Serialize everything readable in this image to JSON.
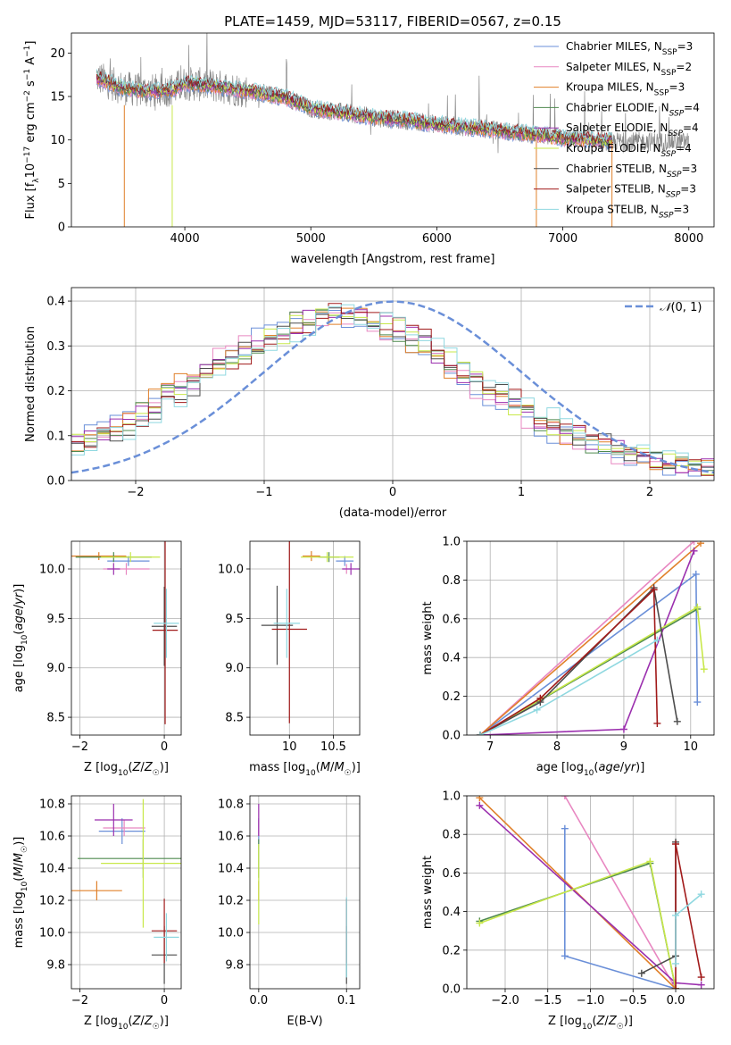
{
  "figure": {
    "title": "PLATE=1459, MJD=53117, FIBERID=0567, z=0.15"
  },
  "colors": {
    "chabrier_miles": "#6a8fd8",
    "salpeter_miles": "#e887c1",
    "kroupa_miles": "#e0802a",
    "chabrier_elodie": "#4f8a4f",
    "salpeter_elodie": "#9b2fae",
    "kroupa_elodie": "#c8e84a",
    "chabrier_stelib": "#4d4d4d",
    "salpeter_stelib": "#a11a1a",
    "kroupa_stelib": "#8fd8e0",
    "data_spectrum": "#888888",
    "normal": "#6a8fd8"
  },
  "chart_data": [
    {
      "type": "line",
      "panel": "spectrum",
      "xlabel": "wavelength [Angstrom, rest frame]",
      "ylabel": "Flux [f_λ 10^-17 erg cm^-2 s^-1 A^-1]",
      "xlim": [
        3100,
        8200
      ],
      "ylim": [
        0,
        22.3
      ],
      "xticks": [
        4000,
        5000,
        6000,
        7000,
        8000
      ],
      "yticks": [
        0,
        5,
        10,
        15,
        20
      ],
      "legend_position": "top-right",
      "legend": [
        {
          "key": "chabrier_miles",
          "base": "Chabrier MILES, N",
          "sub": "SSP",
          "tail": "=3"
        },
        {
          "key": "salpeter_miles",
          "base": "Salpeter MILES, N",
          "sub": "SSP",
          "tail": "=2"
        },
        {
          "key": "kroupa_miles",
          "base": "Kroupa MILES, N",
          "sub": "SSP",
          "tail": "=3"
        },
        {
          "key": "chabrier_elodie",
          "base": "Chabrier ELODIE, N",
          "sub": "SSP",
          "tail": "=4"
        },
        {
          "key": "salpeter_elodie",
          "base": "Salpeter ELODIE, N",
          "sub": "SSP",
          "tail": "=4"
        },
        {
          "key": "kroupa_elodie",
          "base": "Kroupa ELODIE, N",
          "sub": "SSP",
          "tail": "=4"
        },
        {
          "key": "chabrier_stelib",
          "base": "Chabrier STELIB, N",
          "sub": "SSP",
          "tail": "=3"
        },
        {
          "key": "salpeter_stelib",
          "base": "Salpeter STELIB, N",
          "sub": "SSP",
          "tail": "=3"
        },
        {
          "key": "kroupa_stelib",
          "base": "Kroupa STELIB, N",
          "sub": "SSP",
          "tail": "=3"
        }
      ],
      "continuum": [
        [
          3300,
          17.2
        ],
        [
          3500,
          16.0
        ],
        [
          3700,
          15.6
        ],
        [
          3900,
          15.8
        ],
        [
          4000,
          16.5
        ],
        [
          4200,
          16.3
        ],
        [
          4500,
          15.6
        ],
        [
          4800,
          14.9
        ],
        [
          5000,
          13.6
        ],
        [
          5200,
          13.3
        ],
        [
          5500,
          12.6
        ],
        [
          5800,
          12.2
        ],
        [
          6000,
          11.8
        ],
        [
          6300,
          11.4
        ],
        [
          6600,
          10.9
        ],
        [
          6800,
          10.6
        ],
        [
          7000,
          10.2
        ],
        [
          7200,
          10.0
        ],
        [
          7400,
          9.8
        ]
      ],
      "spectrum_range": [
        3300,
        8000
      ]
    },
    {
      "type": "step",
      "panel": "residual_histogram",
      "xlabel": "(data-model)/error",
      "ylabel": "Normed distribution",
      "xlim": [
        -2.5,
        2.5
      ],
      "ylim": [
        0,
        0.43
      ],
      "xticks": [
        -2,
        -1,
        0,
        1,
        2
      ],
      "yticks": [
        0.0,
        0.1,
        0.2,
        0.3,
        0.4
      ],
      "legend_position": "top-right",
      "normal_label": "N(0,1)",
      "bin_width": 0.1,
      "envelope": [
        [
          -2.5,
          0.08
        ],
        [
          -2.0,
          0.13
        ],
        [
          -1.8,
          0.18
        ],
        [
          -1.5,
          0.23
        ],
        [
          -1.3,
          0.27
        ],
        [
          -1.0,
          0.31
        ],
        [
          -0.8,
          0.34
        ],
        [
          -0.6,
          0.37
        ],
        [
          -0.4,
          0.37
        ],
        [
          -0.2,
          0.36
        ],
        [
          0.0,
          0.34
        ],
        [
          0.2,
          0.31
        ],
        [
          0.4,
          0.27
        ],
        [
          0.6,
          0.23
        ],
        [
          0.8,
          0.19
        ],
        [
          1.0,
          0.16
        ],
        [
          1.2,
          0.13
        ],
        [
          1.4,
          0.1
        ],
        [
          1.6,
          0.08
        ],
        [
          1.8,
          0.06
        ],
        [
          2.0,
          0.045
        ],
        [
          2.2,
          0.035
        ],
        [
          2.5,
          0.025
        ]
      ]
    },
    {
      "type": "scatter",
      "panel": "Z_vs_age",
      "xlabel": "Z [log10(Z/Z☉)]",
      "ylabel": "age [log10(age/yr)]",
      "xlim": [
        -2.2,
        0.4
      ],
      "ylim": [
        8.32,
        10.28
      ],
      "xticks": [
        -2,
        0
      ],
      "yticks": [
        8.5,
        9.0,
        9.5,
        10.0
      ],
      "points": [
        {
          "key": "chabrier_miles",
          "x": -0.85,
          "y": 10.08,
          "xerr": 0.5,
          "yerr": 0.05
        },
        {
          "key": "salpeter_miles",
          "x": -0.9,
          "y": 10.0,
          "xerr": 0.55,
          "yerr": 0.06
        },
        {
          "key": "kroupa_miles",
          "x": -1.55,
          "y": 10.13,
          "xerr": 0.65,
          "yerr": 0.04
        },
        {
          "key": "chabrier_elodie",
          "x": -1.2,
          "y": 10.12,
          "xerr": 0.9,
          "yerr": 0.05
        },
        {
          "key": "salpeter_elodie",
          "x": -1.2,
          "y": 10.0,
          "xerr": 0.15,
          "yerr": 0.06
        },
        {
          "key": "kroupa_elodie",
          "x": -0.8,
          "y": 10.12,
          "xerr": 0.7,
          "yerr": 0.05
        },
        {
          "key": "chabrier_stelib",
          "x": 0.0,
          "y": 9.42,
          "xerr": 0.3,
          "yerr": 0.4
        },
        {
          "key": "salpeter_stelib",
          "x": 0.02,
          "y": 9.38,
          "xerr": 0.3,
          "yerr": 0.95
        },
        {
          "key": "kroupa_stelib",
          "x": 0.05,
          "y": 9.45,
          "xerr": 0.3,
          "yerr": 0.35
        }
      ]
    },
    {
      "type": "scatter",
      "panel": "mass_vs_age",
      "xlabel": "mass [log10(M/M☉)]",
      "ylabel": "",
      "xlim": [
        9.55,
        10.8
      ],
      "ylim": [
        8.32,
        10.28
      ],
      "xticks": [
        10.0,
        10.5
      ],
      "yticks": [
        8.5,
        9.0,
        9.5,
        10.0
      ],
      "points": [
        {
          "key": "chabrier_miles",
          "x": 10.63,
          "y": 10.08,
          "xerr": 0.1,
          "yerr": 0.05
        },
        {
          "key": "salpeter_miles",
          "x": 10.65,
          "y": 10.0,
          "xerr": 0.05,
          "yerr": 0.05
        },
        {
          "key": "kroupa_miles",
          "x": 10.25,
          "y": 10.13,
          "xerr": 0.1,
          "yerr": 0.05
        },
        {
          "key": "chabrier_elodie",
          "x": 10.45,
          "y": 10.12,
          "xerr": 0.12,
          "yerr": 0.05
        },
        {
          "key": "salpeter_elodie",
          "x": 10.7,
          "y": 10.0,
          "xerr": 0.1,
          "yerr": 0.06
        },
        {
          "key": "kroupa_elodie",
          "x": 10.43,
          "y": 10.12,
          "xerr": 0.3,
          "yerr": 0.05
        },
        {
          "key": "chabrier_stelib",
          "x": 9.86,
          "y": 9.43,
          "xerr": 0.18,
          "yerr": 0.4
        },
        {
          "key": "salpeter_stelib",
          "x": 10.0,
          "y": 9.39,
          "xerr": 0.2,
          "yerr": 0.95
        },
        {
          "key": "kroupa_stelib",
          "x": 9.97,
          "y": 9.45,
          "xerr": 0.15,
          "yerr": 0.35
        }
      ]
    },
    {
      "type": "line",
      "panel": "age_vs_massweight",
      "xlabel": "age [log10(age/yr)]",
      "ylabel": "mass weight",
      "xlim": [
        6.65,
        10.35
      ],
      "ylim": [
        0,
        1.0
      ],
      "xticks": [
        7,
        8,
        9,
        10
      ],
      "yticks": [
        0.0,
        0.2,
        0.4,
        0.6,
        0.8,
        1.0
      ],
      "series": [
        {
          "key": "chabrier_miles",
          "x": [
            6.85,
            10.08,
            10.1
          ],
          "y": [
            0.0,
            0.83,
            0.17
          ]
        },
        {
          "key": "salpeter_miles",
          "x": [
            6.85,
            10.05
          ],
          "y": [
            0.0,
            1.0
          ]
        },
        {
          "key": "kroupa_miles",
          "x": [
            6.85,
            10.15
          ],
          "y": [
            0.0,
            0.99
          ]
        },
        {
          "key": "chabrier_elodie",
          "x": [
            6.85,
            7.75,
            10.1
          ],
          "y": [
            0.0,
            0.18,
            0.65
          ]
        },
        {
          "key": "salpeter_elodie",
          "x": [
            6.85,
            9.0,
            10.05
          ],
          "y": [
            0.0,
            0.03,
            0.95
          ]
        },
        {
          "key": "kroupa_elodie",
          "x": [
            6.85,
            10.1,
            10.2
          ],
          "y": [
            0.0,
            0.66,
            0.34
          ]
        },
        {
          "key": "chabrier_stelib",
          "x": [
            6.85,
            7.75,
            9.45,
            9.8
          ],
          "y": [
            0.0,
            0.17,
            0.76,
            0.07
          ]
        },
        {
          "key": "salpeter_stelib",
          "x": [
            6.85,
            7.75,
            9.45,
            9.5
          ],
          "y": [
            0.0,
            0.19,
            0.75,
            0.06
          ]
        },
        {
          "key": "kroupa_stelib",
          "x": [
            6.85,
            7.7,
            9.5
          ],
          "y": [
            0.0,
            0.13,
            0.49
          ]
        }
      ]
    },
    {
      "type": "scatter",
      "panel": "Z_vs_mass",
      "xlabel": "Z [log10(Z/Z☉)]",
      "ylabel": "mass [log10(M/M☉)]",
      "xlim": [
        -2.2,
        0.4
      ],
      "ylim": [
        9.65,
        10.85
      ],
      "xticks": [
        -2,
        0
      ],
      "yticks": [
        9.8,
        10.0,
        10.2,
        10.4,
        10.6,
        10.8
      ],
      "points": [
        {
          "key": "chabrier_miles",
          "x": -1.0,
          "y": 10.63,
          "xerr": 0.55,
          "yerr": 0.08
        },
        {
          "key": "salpeter_miles",
          "x": -0.95,
          "y": 10.65,
          "xerr": 0.5,
          "yerr": 0.05
        },
        {
          "key": "kroupa_miles",
          "x": -1.6,
          "y": 10.26,
          "xerr": 0.6,
          "yerr": 0.06
        },
        {
          "key": "chabrier_elodie",
          "x": -0.5,
          "y": 10.46,
          "xerr": 1.55,
          "yerr": 0.12
        },
        {
          "key": "salpeter_elodie",
          "x": -1.2,
          "y": 10.7,
          "xerr": 0.45,
          "yerr": 0.1
        },
        {
          "key": "kroupa_elodie",
          "x": -0.5,
          "y": 10.43,
          "xerr": 1.0,
          "yerr": 0.4
        },
        {
          "key": "chabrier_stelib",
          "x": 0.0,
          "y": 9.86,
          "xerr": 0.3,
          "yerr": 0.18
        },
        {
          "key": "salpeter_stelib",
          "x": 0.0,
          "y": 10.01,
          "xerr": 0.3,
          "yerr": 0.2
        },
        {
          "key": "kroupa_stelib",
          "x": 0.05,
          "y": 9.97,
          "xerr": 0.3,
          "yerr": 0.15
        }
      ]
    },
    {
      "type": "scatter",
      "panel": "EBV_vs_mass",
      "xlabel": "E(B-V)",
      "ylabel": "",
      "xlim": [
        -0.01,
        0.115
      ],
      "ylim": [
        9.65,
        10.85
      ],
      "xticks": [
        0.0,
        0.1
      ],
      "xtick_labels": [
        "0.0",
        "0.1"
      ],
      "yticks": [
        9.8,
        10.0,
        10.2,
        10.4,
        10.6,
        10.8
      ],
      "points": [
        {
          "key": "chabrier_miles",
          "x": 0.0,
          "y": 10.63,
          "xerr": 0.0,
          "yerr": 0.08
        },
        {
          "key": "salpeter_miles",
          "x": 0.0,
          "y": 10.65,
          "xerr": 0.0,
          "yerr": 0.05
        },
        {
          "key": "kroupa_miles",
          "x": 0.0,
          "y": 10.26,
          "xerr": 0.0,
          "yerr": 0.06
        },
        {
          "key": "chabrier_elodie",
          "x": 0.0,
          "y": 10.46,
          "xerr": 0.0,
          "yerr": 0.12
        },
        {
          "key": "salpeter_elodie",
          "x": 0.0,
          "y": 10.7,
          "xerr": 0.0,
          "yerr": 0.1
        },
        {
          "key": "kroupa_elodie",
          "x": 0.0,
          "y": 10.3,
          "xerr": 0.0,
          "yerr": 0.25
        },
        {
          "key": "chabrier_stelib",
          "x": 0.1,
          "y": 9.86,
          "xerr": 0.0,
          "yerr": 0.18
        },
        {
          "key": "salpeter_stelib",
          "x": 0.1,
          "y": 10.01,
          "xerr": 0.0,
          "yerr": 0.2
        },
        {
          "key": "kroupa_stelib",
          "x": 0.1,
          "y": 9.97,
          "xerr": 0.0,
          "yerr": 0.25
        }
      ]
    },
    {
      "type": "line",
      "panel": "Z_vs_massweight",
      "xlabel": "Z [log10(Z/Z☉)]",
      "ylabel": "mass weight",
      "xlim": [
        -2.45,
        0.45
      ],
      "ylim": [
        0,
        1.0
      ],
      "xticks": [
        -2.0,
        -1.5,
        -1.0,
        -0.5,
        0.0
      ],
      "xtick_labels": [
        "−2.0",
        "−1.5",
        "−1.0",
        "−0.5",
        "0.0"
      ],
      "yticks": [
        0.0,
        0.2,
        0.4,
        0.6,
        0.8,
        1.0
      ],
      "series": [
        {
          "key": "chabrier_miles",
          "x": [
            -1.3,
            -1.3,
            0.0
          ],
          "y": [
            0.83,
            0.17,
            0.0
          ]
        },
        {
          "key": "salpeter_miles",
          "x": [
            -1.3,
            0.0
          ],
          "y": [
            1.0,
            0.0
          ]
        },
        {
          "key": "kroupa_miles",
          "x": [
            -2.3,
            0.0
          ],
          "y": [
            0.99,
            0.0
          ]
        },
        {
          "key": "chabrier_elodie",
          "x": [
            -2.3,
            -0.3,
            0.0
          ],
          "y": [
            0.35,
            0.65,
            0.0
          ]
        },
        {
          "key": "salpeter_elodie",
          "x": [
            -2.3,
            0.0,
            0.3
          ],
          "y": [
            0.95,
            0.03,
            0.02
          ]
        },
        {
          "key": "kroupa_elodie",
          "x": [
            -2.3,
            -0.3,
            0.0
          ],
          "y": [
            0.34,
            0.66,
            0.0
          ]
        },
        {
          "key": "chabrier_stelib",
          "x": [
            -0.4,
            0.0,
            0.0
          ],
          "y": [
            0.08,
            0.17,
            0.76
          ]
        },
        {
          "key": "salpeter_stelib",
          "x": [
            0.0,
            0.0,
            0.3
          ],
          "y": [
            0.0,
            0.75,
            0.06
          ]
        },
        {
          "key": "kroupa_stelib",
          "x": [
            0.0,
            0.0,
            0.3
          ],
          "y": [
            0.13,
            0.38,
            0.49
          ]
        }
      ]
    }
  ]
}
